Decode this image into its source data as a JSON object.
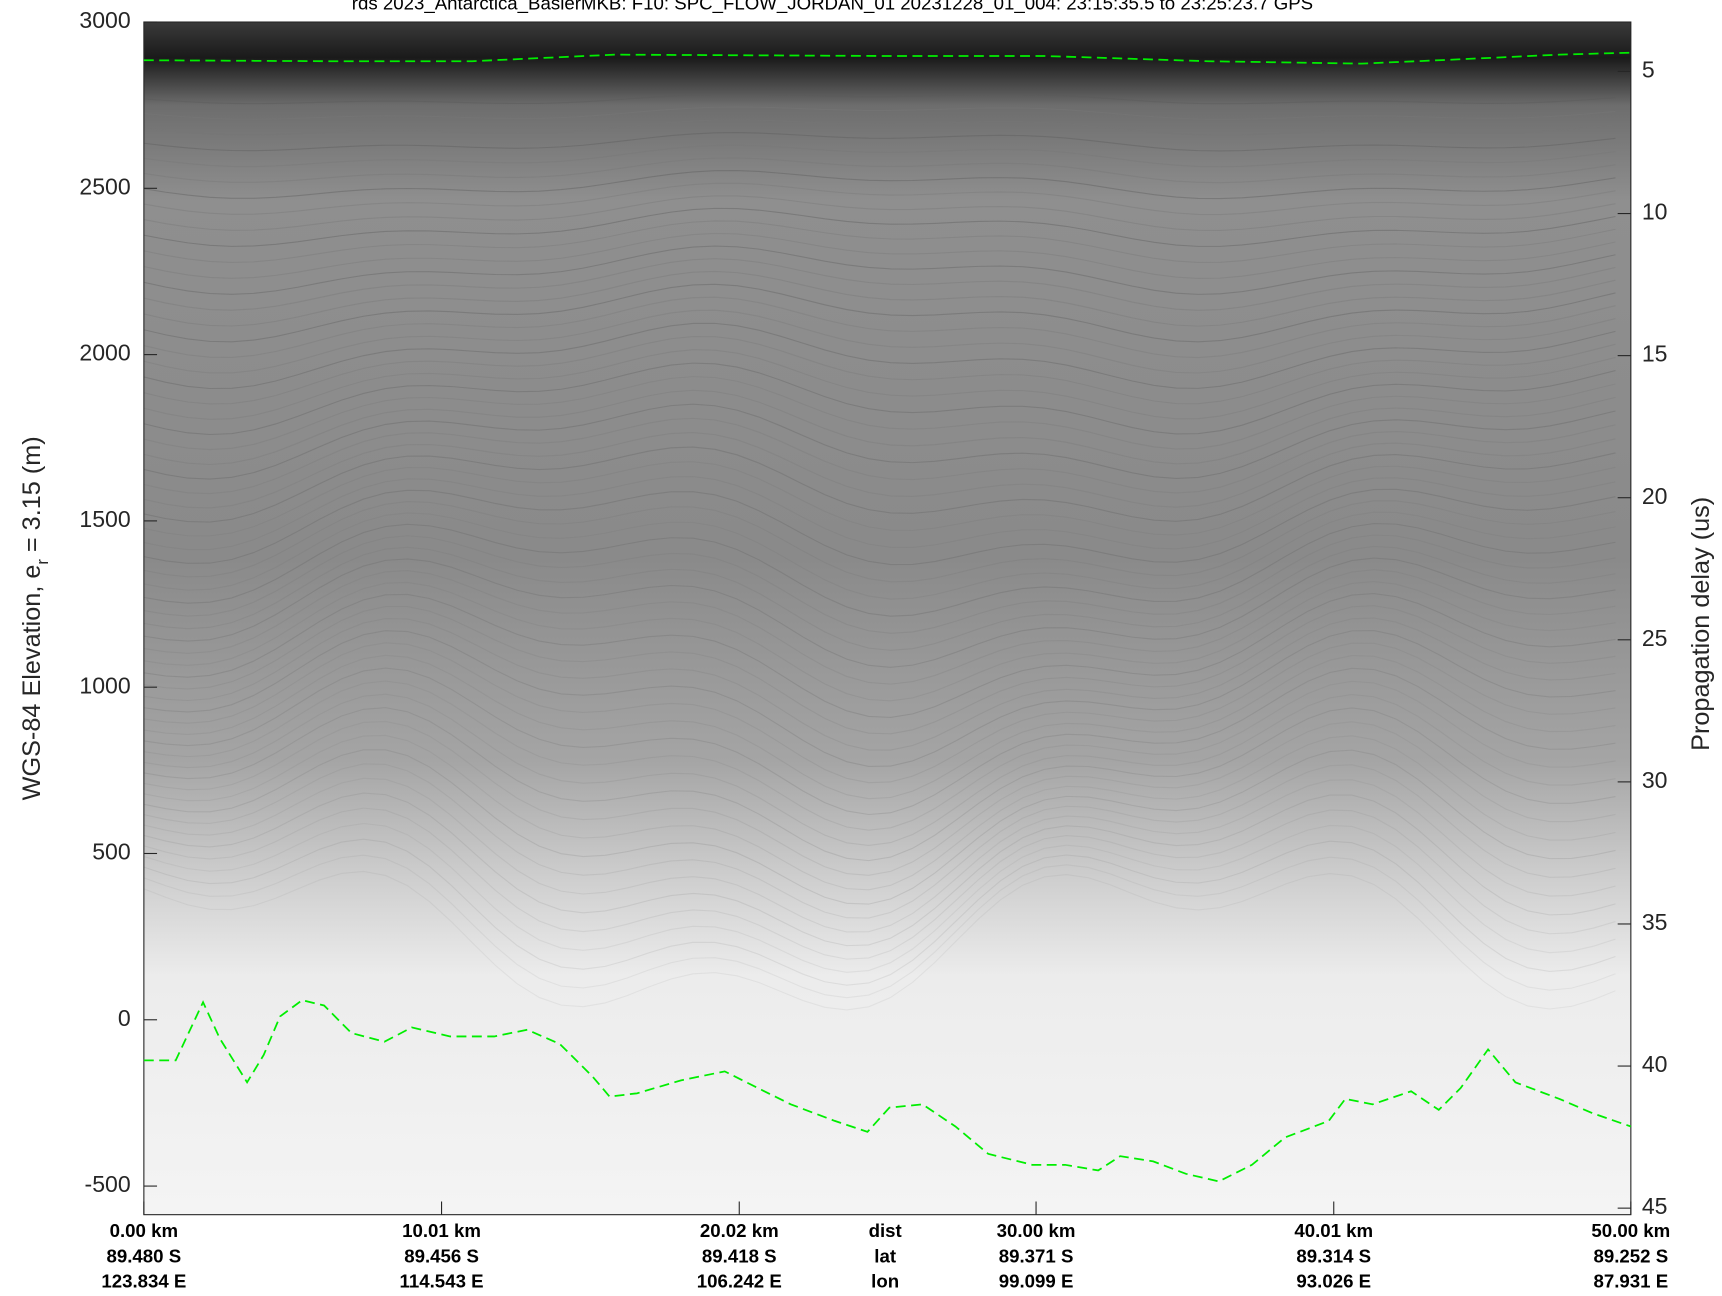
{
  "chart_data": {
    "type": "line",
    "title": "rds 2023_Antarctica_BaslerMKB:  F10: SPC_FLOW_JORDAN_01   20231228_01_004: 23:15:35.5 to 23:25:23.7 GPS",
    "ylabel_parts": [
      "WGS-84 Elevation, e",
      "r",
      " = 3.15 (m)"
    ],
    "y2label": "Propagation delay (us)",
    "xlim": [
      0,
      50
    ],
    "xticks": [
      {
        "value": 0,
        "label": "0.00 km"
      },
      {
        "value": 10.01,
        "label": "10.01 km"
      },
      {
        "value": 20.02,
        "label": "20.02 km"
      },
      {
        "value": 30,
        "label": "30.00 km"
      },
      {
        "value": 40.01,
        "label": "40.01 km"
      },
      {
        "value": 50,
        "label": "50.00 km"
      }
    ],
    "x_rows": [
      "dist",
      "lat",
      "lon"
    ],
    "lat_labels": [
      "89.480 S",
      "89.456 S",
      "89.418 S",
      "89.371 S",
      "89.314 S",
      "89.252 S"
    ],
    "lon_labels": [
      "123.834 E",
      "114.543 E",
      "106.242 E",
      "99.099 E",
      "93.026 E",
      "87.931 E"
    ],
    "ylim": [
      -586,
      3000
    ],
    "yticks": [
      -500,
      0,
      500,
      1000,
      1500,
      2000,
      2500,
      3000
    ],
    "y2lim": [
      3.26,
      45.23
    ],
    "y2_inverted": true,
    "y2ticks": [
      5,
      10,
      15,
      20,
      25,
      30,
      35,
      40,
      45
    ],
    "series": [
      {
        "color": "#00ee00",
        "x": [
          0,
          6.24,
          11.04,
          15.84,
          24.71,
          30.24,
          35.78,
          40.95,
          44.28,
          47.6,
          50.0
        ],
        "values": [
          2885,
          2882,
          2882,
          2902,
          2898,
          2898,
          2882,
          2875,
          2888,
          2902,
          2908
        ]
      },
      {
        "color": "#00ee00",
        "x": [
          0,
          1.07,
          1.99,
          2.55,
          3.47,
          4.03,
          4.58,
          5.32,
          6.06,
          6.98,
          8.09,
          9.01,
          10.3,
          11.78,
          12.89,
          13.99,
          15.1,
          15.66,
          16.58,
          18.06,
          19.53,
          20.64,
          21.75,
          23.23,
          24.33,
          25.07,
          26.18,
          27.29,
          28.39,
          29.87,
          30.98,
          32.09,
          32.83,
          33.94,
          35.04,
          36.15,
          37.26,
          38.37,
          39.84,
          40.4,
          41.32,
          42.61,
          43.54,
          44.28,
          45.2,
          46.12,
          47.6,
          48.71,
          50.0
        ],
        "values": [
          -122,
          -122,
          53,
          -56,
          -188,
          -106,
          10,
          59,
          43,
          -40,
          -66,
          -23,
          -50,
          -50,
          -30,
          -73,
          -172,
          -231,
          -221,
          -182,
          -155,
          -205,
          -254,
          -304,
          -337,
          -264,
          -254,
          -321,
          -403,
          -436,
          -436,
          -453,
          -410,
          -426,
          -463,
          -486,
          -436,
          -354,
          -304,
          -238,
          -254,
          -215,
          -271,
          -205,
          -89,
          -188,
          -238,
          -281,
          -321
        ]
      }
    ]
  }
}
